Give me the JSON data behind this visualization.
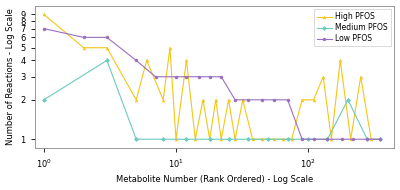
{
  "title": "",
  "xlabel": "Metabolite Number (Rank Ordered) - Log Scale",
  "ylabel": "Number of Reactions - Log Scale",
  "background_color": "#ffffff",
  "low_pfos": {
    "x": [
      1,
      2,
      3,
      5,
      7,
      10,
      12,
      15,
      18,
      22,
      28,
      35,
      45,
      55,
      70,
      90,
      110,
      140,
      180,
      220,
      280,
      350
    ],
    "y": [
      7,
      6,
      6,
      4,
      3,
      3,
      3,
      3,
      3,
      3,
      2,
      2,
      2,
      2,
      2,
      1,
      1,
      1,
      1,
      1,
      1,
      1
    ],
    "color": "#9b6fbf",
    "marker": "o",
    "label": "Low PFOS"
  },
  "medium_pfos": {
    "x": [
      1,
      3,
      5,
      8,
      12,
      18,
      25,
      35,
      50,
      70,
      100,
      140,
      200,
      280,
      350
    ],
    "y": [
      2,
      4,
      1,
      1,
      1,
      1,
      1,
      1,
      1,
      1,
      1,
      1,
      2,
      1,
      1
    ],
    "color": "#6bcbbc",
    "marker": "D",
    "label": "Medium PFOS"
  },
  "high_pfos": {
    "x": [
      1,
      2,
      3,
      5,
      6,
      8,
      9,
      10,
      12,
      14,
      16,
      18,
      20,
      22,
      25,
      28,
      32,
      38,
      45,
      55,
      65,
      75,
      90,
      110,
      130,
      150,
      175,
      210,
      250,
      300,
      350
    ],
    "y": [
      9,
      5,
      5,
      2,
      4,
      2,
      5,
      1,
      4,
      1,
      2,
      1,
      2,
      1,
      2,
      1,
      2,
      1,
      1,
      1,
      1,
      1,
      2,
      2,
      3,
      1,
      4,
      1,
      3,
      1,
      1
    ],
    "color": "#f5c518",
    "marker": "^",
    "label": "High PFOS"
  },
  "xlim": [
    0.85,
    450
  ],
  "ylim": [
    0.85,
    10.5
  ],
  "yticks": [
    1,
    2,
    3,
    4,
    5,
    6,
    7,
    8,
    9
  ],
  "ytick_labels": [
    "1",
    "2",
    "3",
    "4",
    "5",
    "6",
    "7",
    "8",
    "9"
  ]
}
